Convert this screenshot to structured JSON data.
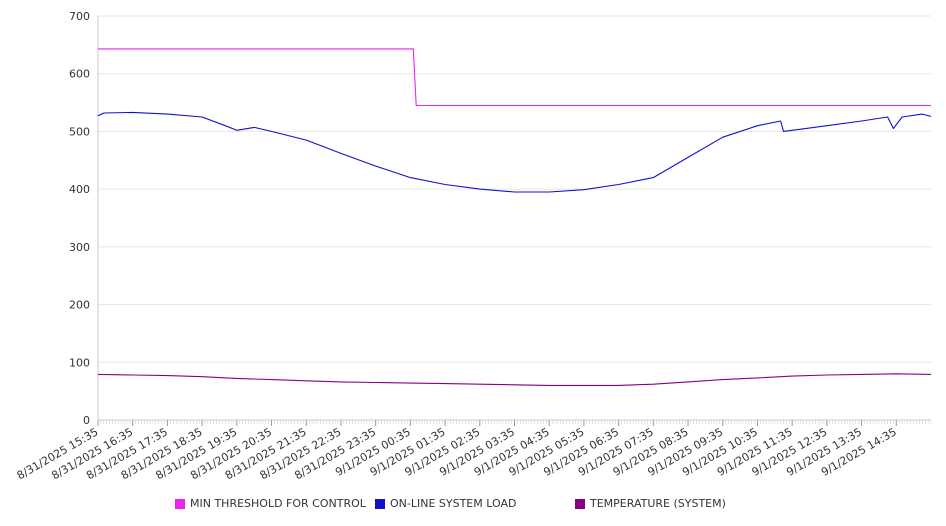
{
  "chart_data": {
    "type": "line",
    "title": "",
    "xlabel": "",
    "ylabel": "",
    "ylim": [
      0,
      700
    ],
    "yticks": [
      0,
      100,
      200,
      300,
      400,
      500,
      600,
      700
    ],
    "grid": true,
    "legend_placement": "bottom",
    "x_range": [
      "8/31/2025 15:35",
      "9/1/2025 15:35"
    ],
    "xtick_labels": [
      "8/31/2025 15:35",
      "8/31/2025 16:35",
      "8/31/2025 17:35",
      "8/31/2025 18:35",
      "8/31/2025 19:35",
      "8/31/2025 20:35",
      "8/31/2025 21:35",
      "8/31/2025 22:35",
      "8/31/2025 23:35",
      "9/1/2025 00:35",
      "9/1/2025 01:35",
      "9/1/2025 02:35",
      "9/1/2025 03:35",
      "9/1/2025 04:35",
      "9/1/2025 05:35",
      "9/1/2025 06:35",
      "9/1/2025 07:35",
      "9/1/2025 08:35",
      "9/1/2025 09:35",
      "9/1/2025 10:35",
      "9/1/2025 11:35",
      "9/1/2025 12:35",
      "9/1/2025 13:35",
      "9/1/2025 14:35"
    ],
    "series": [
      {
        "name": "MIN THRESHOLD FOR CONTROL",
        "color": "#ee22ee",
        "x": [
          "8/31/2025 15:35",
          "9/1/2025 00:40",
          "9/1/2025 00:45",
          "9/1/2025 15:35"
        ],
        "values": [
          643,
          643,
          545,
          545
        ]
      },
      {
        "name": "ON-LINE SYSTEM LOAD",
        "color": "#1111cc",
        "x": [
          "8/31/2025 15:35",
          "8/31/2025 15:45",
          "8/31/2025 16:35",
          "8/31/2025 17:35",
          "8/31/2025 18:35",
          "8/31/2025 19:15",
          "8/31/2025 19:35",
          "8/31/2025 20:05",
          "8/31/2025 20:35",
          "8/31/2025 21:35",
          "8/31/2025 22:35",
          "8/31/2025 23:35",
          "9/1/2025 00:35",
          "9/1/2025 01:35",
          "9/1/2025 02:35",
          "9/1/2025 03:35",
          "9/1/2025 04:35",
          "9/1/2025 05:35",
          "9/1/2025 06:35",
          "9/1/2025 07:35",
          "9/1/2025 08:35",
          "9/1/2025 09:35",
          "9/1/2025 10:35",
          "9/1/2025 11:15",
          "9/1/2025 11:20",
          "9/1/2025 11:35",
          "9/1/2025 12:35",
          "9/1/2025 13:35",
          "9/1/2025 14:20",
          "9/1/2025 14:30",
          "9/1/2025 14:45",
          "9/1/2025 15:20",
          "9/1/2025 15:35"
        ],
        "values": [
          527,
          532,
          533,
          530,
          525,
          510,
          502,
          507,
          500,
          485,
          462,
          440,
          420,
          408,
          400,
          395,
          395,
          399,
          408,
          420,
          455,
          490,
          510,
          518,
          500,
          502,
          510,
          518,
          525,
          505,
          525,
          530,
          526
        ]
      },
      {
        "name": "TEMPERATURE (SYSTEM)",
        "color": "#880088",
        "x": [
          "8/31/2025 15:35",
          "8/31/2025 16:35",
          "8/31/2025 17:35",
          "8/31/2025 18:35",
          "8/31/2025 19:35",
          "8/31/2025 20:35",
          "8/31/2025 21:35",
          "8/31/2025 22:35",
          "8/31/2025 23:35",
          "9/1/2025 00:35",
          "9/1/2025 01:35",
          "9/1/2025 02:35",
          "9/1/2025 03:35",
          "9/1/2025 04:35",
          "9/1/2025 05:35",
          "9/1/2025 06:35",
          "9/1/2025 07:35",
          "9/1/2025 08:35",
          "9/1/2025 09:35",
          "9/1/2025 10:35",
          "9/1/2025 11:35",
          "9/1/2025 12:35",
          "9/1/2025 13:35",
          "9/1/2025 14:35",
          "9/1/2025 15:35"
        ],
        "values": [
          79,
          78,
          77,
          75,
          72,
          70,
          68,
          66,
          65,
          64,
          63,
          62,
          61,
          60,
          60,
          60,
          62,
          66,
          70,
          73,
          76,
          78,
          79,
          80,
          79
        ]
      }
    ]
  }
}
